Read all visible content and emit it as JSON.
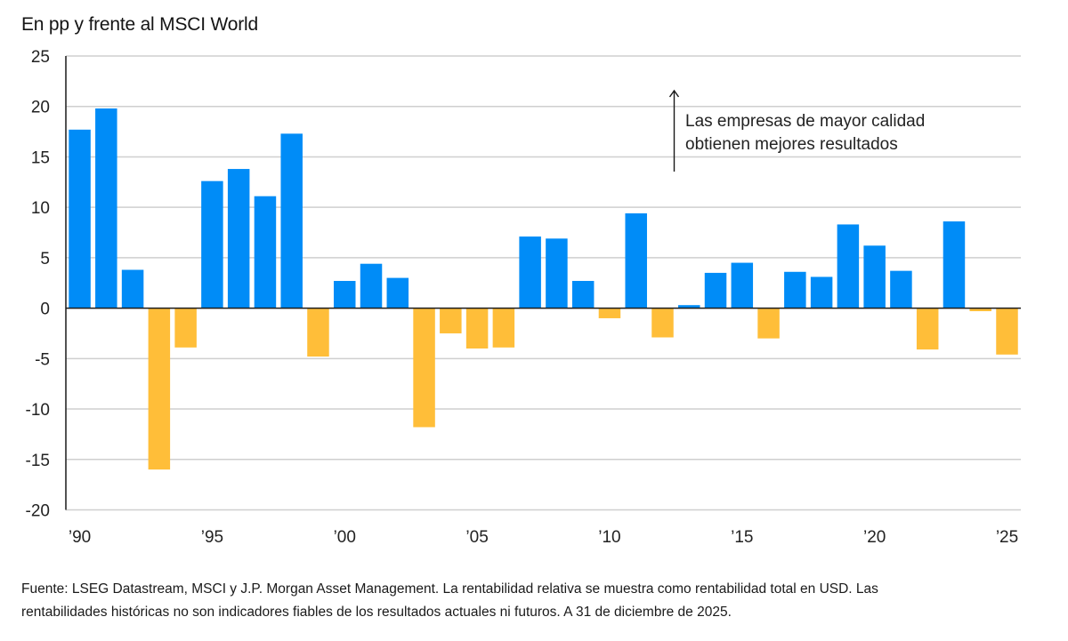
{
  "chart_data": {
    "type": "bar",
    "title": "En pp y frente al MSCI World",
    "xlabel": "",
    "ylabel": "En pp y frente al MSCI World",
    "ylim": [
      -20,
      25
    ],
    "yticks": [
      25,
      20,
      15,
      10,
      5,
      0,
      -5,
      -10,
      -15,
      -20
    ],
    "ytick_labels": [
      "25",
      "20",
      "15",
      "10",
      "5",
      "0",
      "-5",
      "-10",
      "-15",
      "-20"
    ],
    "grid": true,
    "categories": [
      "1990",
      "1991",
      "1992",
      "1993",
      "1994",
      "1995",
      "1996",
      "1997",
      "1998",
      "1999",
      "2000",
      "2001",
      "2002",
      "2003",
      "2004",
      "2005",
      "2006",
      "2007",
      "2008",
      "2009",
      "2010",
      "2011",
      "2012",
      "2013",
      "2014",
      "2015",
      "2016",
      "2017",
      "2018",
      "2019",
      "2020",
      "2021",
      "2022",
      "2023",
      "2024",
      "2025"
    ],
    "values": [
      17.7,
      19.8,
      3.8,
      -16.0,
      -3.9,
      12.6,
      13.8,
      11.1,
      17.3,
      -4.8,
      2.7,
      4.4,
      3.0,
      -11.8,
      -2.5,
      -4.0,
      -3.9,
      7.1,
      6.9,
      2.7,
      -1.0,
      9.4,
      -2.9,
      0.3,
      3.5,
      4.5,
      -3.0,
      3.6,
      3.1,
      8.3,
      6.2,
      3.7,
      -4.1,
      8.6,
      -0.3,
      -4.6
    ],
    "xtick_labels": [
      {
        "category": "1990",
        "label": "’90"
      },
      {
        "category": "1995",
        "label": "’95"
      },
      {
        "category": "2000",
        "label": "’00"
      },
      {
        "category": "2005",
        "label": "’05"
      },
      {
        "category": "2010",
        "label": "’10"
      },
      {
        "category": "2015",
        "label": "’15"
      },
      {
        "category": "2020",
        "label": "’20"
      },
      {
        "category": "2025",
        "label": "’25"
      }
    ],
    "colors": {
      "positive": "#008CF7",
      "negative": "#FFBE39",
      "grid": "#cfcfcf",
      "axis": "#1a1a1a"
    },
    "annotation": {
      "lines": [
        "Las empresas de mayor calidad",
        "obtienen mejores resultados"
      ],
      "arrow": "up"
    },
    "legend": "none"
  },
  "footer": {
    "line1": "Fuente: LSEG Datastream, MSCI y J.P. Morgan Asset Management. La rentabilidad relativa se muestra como rentabilidad total en USD. Las",
    "line2": "rentabilidades históricas no son indicadores fiables de los resultados actuales ni futuros. A 31 de diciembre de 2025."
  }
}
